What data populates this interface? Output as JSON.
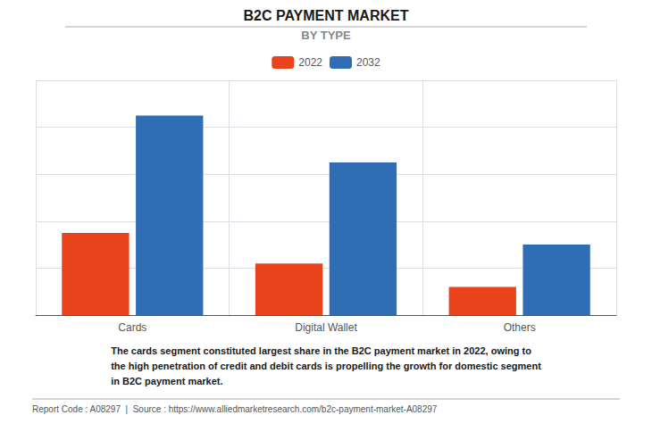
{
  "chart_data": {
    "type": "bar",
    "title": "B2C PAYMENT MARKET",
    "subtitle": "BY TYPE",
    "categories": [
      "Cards",
      "Digital Wallet",
      "Others"
    ],
    "series": [
      {
        "name": "2022",
        "color": "#E8431A",
        "values": [
          3.5,
          2.2,
          1.2
        ]
      },
      {
        "name": "2032",
        "color": "#2F6DB5",
        "values": [
          8.5,
          6.5,
          3.0
        ]
      }
    ],
    "ylim": [
      0,
      10
    ],
    "yticks": [
      0,
      2,
      4,
      6,
      8,
      10
    ],
    "grid": true,
    "legend": "top",
    "tick_labels": "x",
    "annotations": [
      "The cards segment constituted largest share in the B2C payment market in 2022, owing to\nthe high penetration of credit and debit cards is propelling the growth for domestic segment\nin B2C payment market.",
      "Report Code : A08297  |  Source : https://www.alliedmarketresearch.com/b2c-payment-market-A08297"
    ]
  }
}
